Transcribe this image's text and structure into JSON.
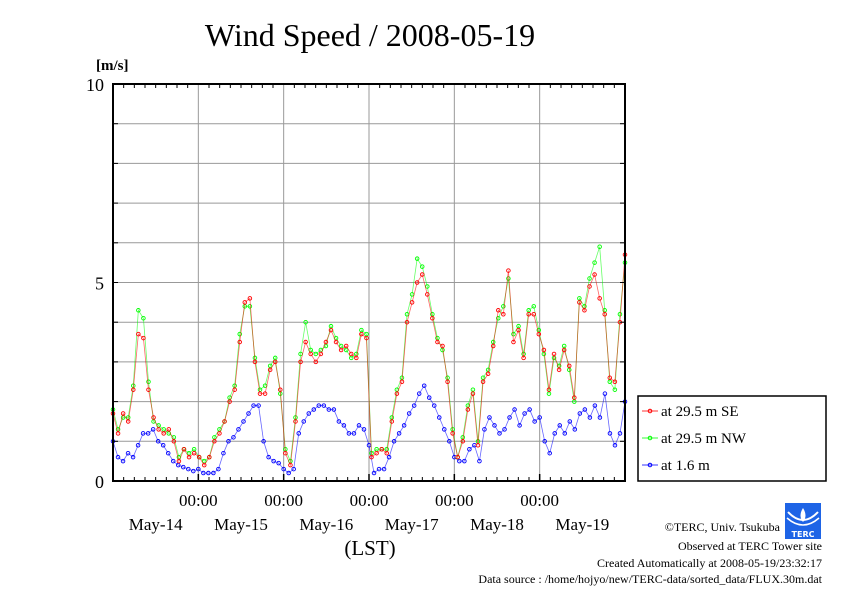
{
  "chart_data": {
    "type": "line",
    "title": "Wind Speed / 2008-05-19",
    "ylabel": "[m/s]",
    "xlabel": "(LST)",
    "ylim": [
      0,
      10
    ],
    "y_ticks": [
      "0",
      "5",
      "10"
    ],
    "y_grid_step": 1,
    "x_range_hours": [
      0,
      144
    ],
    "x_tick_hours": [
      24,
      48,
      72,
      96,
      120
    ],
    "x_tick_labels": [
      "00:00",
      "00:00",
      "00:00",
      "00:00",
      "00:00"
    ],
    "x_day_labels": [
      "May-14",
      "May-15",
      "May-16",
      "May-17",
      "May-18",
      "May-19"
    ],
    "grid": true,
    "legend_placement": "right",
    "series": [
      {
        "name": "at 29.5 m SE",
        "color": "#ff0000",
        "values": [
          1.7,
          1.2,
          1.7,
          1.5,
          2.3,
          3.7,
          3.6,
          2.3,
          1.6,
          1.3,
          1.2,
          1.3,
          1.0,
          0.5,
          0.8,
          0.6,
          0.7,
          0.6,
          0.4,
          0.6,
          1.0,
          1.2,
          1.5,
          2.0,
          2.3,
          3.5,
          4.5,
          4.6,
          3.0,
          2.2,
          2.2,
          2.8,
          3.0,
          2.3,
          0.7,
          0.4,
          1.5,
          3.0,
          3.5,
          3.2,
          3.0,
          3.2,
          3.5,
          3.8,
          3.5,
          3.3,
          3.4,
          3.2,
          3.1,
          3.7,
          3.6,
          0.6,
          0.7,
          0.8,
          0.7,
          1.5,
          2.2,
          2.5,
          4.0,
          4.5,
          5.0,
          5.2,
          4.7,
          4.1,
          3.5,
          3.4,
          2.5,
          1.2,
          0.6,
          1.0,
          1.8,
          2.2,
          0.9,
          2.5,
          2.7,
          3.4,
          4.3,
          4.2,
          5.3,
          3.5,
          3.8,
          3.1,
          4.2,
          4.2,
          3.7,
          3.3,
          2.3,
          3.2,
          2.8,
          3.3,
          2.9,
          2.1,
          4.5,
          4.3,
          4.9,
          5.2,
          4.6,
          4.2,
          2.6,
          2.5,
          4.0,
          5.7
        ]
      },
      {
        "name": "at 29.5 m NW",
        "color": "#00ff00",
        "values": [
          1.8,
          1.3,
          1.6,
          1.6,
          2.4,
          4.3,
          4.1,
          2.5,
          1.5,
          1.4,
          1.3,
          1.2,
          1.1,
          0.6,
          0.8,
          0.7,
          0.8,
          0.6,
          0.5,
          0.6,
          1.1,
          1.3,
          1.5,
          2.1,
          2.4,
          3.7,
          4.4,
          4.4,
          3.1,
          2.3,
          2.4,
          2.9,
          3.1,
          2.2,
          0.8,
          0.5,
          1.6,
          3.2,
          4.0,
          3.3,
          3.2,
          3.3,
          3.4,
          3.9,
          3.6,
          3.4,
          3.3,
          3.1,
          3.2,
          3.8,
          3.7,
          0.7,
          0.8,
          0.8,
          0.8,
          1.6,
          2.3,
          2.6,
          4.2,
          4.7,
          5.6,
          5.4,
          4.9,
          4.2,
          3.6,
          3.3,
          2.6,
          1.3,
          0.6,
          1.1,
          1.9,
          2.3,
          1.0,
          2.6,
          2.8,
          3.5,
          4.1,
          4.4,
          5.1,
          3.7,
          3.9,
          3.2,
          4.3,
          4.4,
          3.8,
          3.2,
          2.2,
          3.1,
          2.9,
          3.4,
          2.8,
          2.0,
          4.6,
          4.4,
          5.1,
          5.5,
          5.9,
          4.3,
          2.5,
          2.3,
          4.2,
          5.5
        ]
      },
      {
        "name": "at 1.6 m",
        "color": "#0000ff",
        "values": [
          1.0,
          0.6,
          0.5,
          0.7,
          0.6,
          0.9,
          1.2,
          1.2,
          1.3,
          1.0,
          0.9,
          0.7,
          0.5,
          0.4,
          0.35,
          0.3,
          0.25,
          0.3,
          0.2,
          0.2,
          0.2,
          0.3,
          0.7,
          1.0,
          1.1,
          1.3,
          1.5,
          1.7,
          1.9,
          1.9,
          1.0,
          0.6,
          0.5,
          0.45,
          0.3,
          0.2,
          0.3,
          1.2,
          1.5,
          1.7,
          1.8,
          1.9,
          1.9,
          1.8,
          1.8,
          1.5,
          1.4,
          1.2,
          1.2,
          1.4,
          1.3,
          0.9,
          0.2,
          0.3,
          0.3,
          0.6,
          1.0,
          1.2,
          1.4,
          1.7,
          1.9,
          2.2,
          2.4,
          2.1,
          1.9,
          1.6,
          1.3,
          1.0,
          0.6,
          0.5,
          0.5,
          0.8,
          0.9,
          0.5,
          1.3,
          1.6,
          1.4,
          1.2,
          1.3,
          1.6,
          1.8,
          1.4,
          1.7,
          1.8,
          1.5,
          1.6,
          1.0,
          0.7,
          1.2,
          1.4,
          1.2,
          1.5,
          1.3,
          1.7,
          1.8,
          1.6,
          1.9,
          1.6,
          2.2,
          1.2,
          0.9,
          1.2,
          2.0
        ]
      }
    ]
  },
  "footer": {
    "copyright": "©TERC, Univ. Tsukuba",
    "observed": "Observed at TERC Tower site",
    "created": "Created Automatically at 2008-05-19/23:32:17",
    "source": "Data source : /home/hojyo/new/TERC-data/sorted_data/FLUX.30m.dat",
    "logo_text": "TERC"
  }
}
